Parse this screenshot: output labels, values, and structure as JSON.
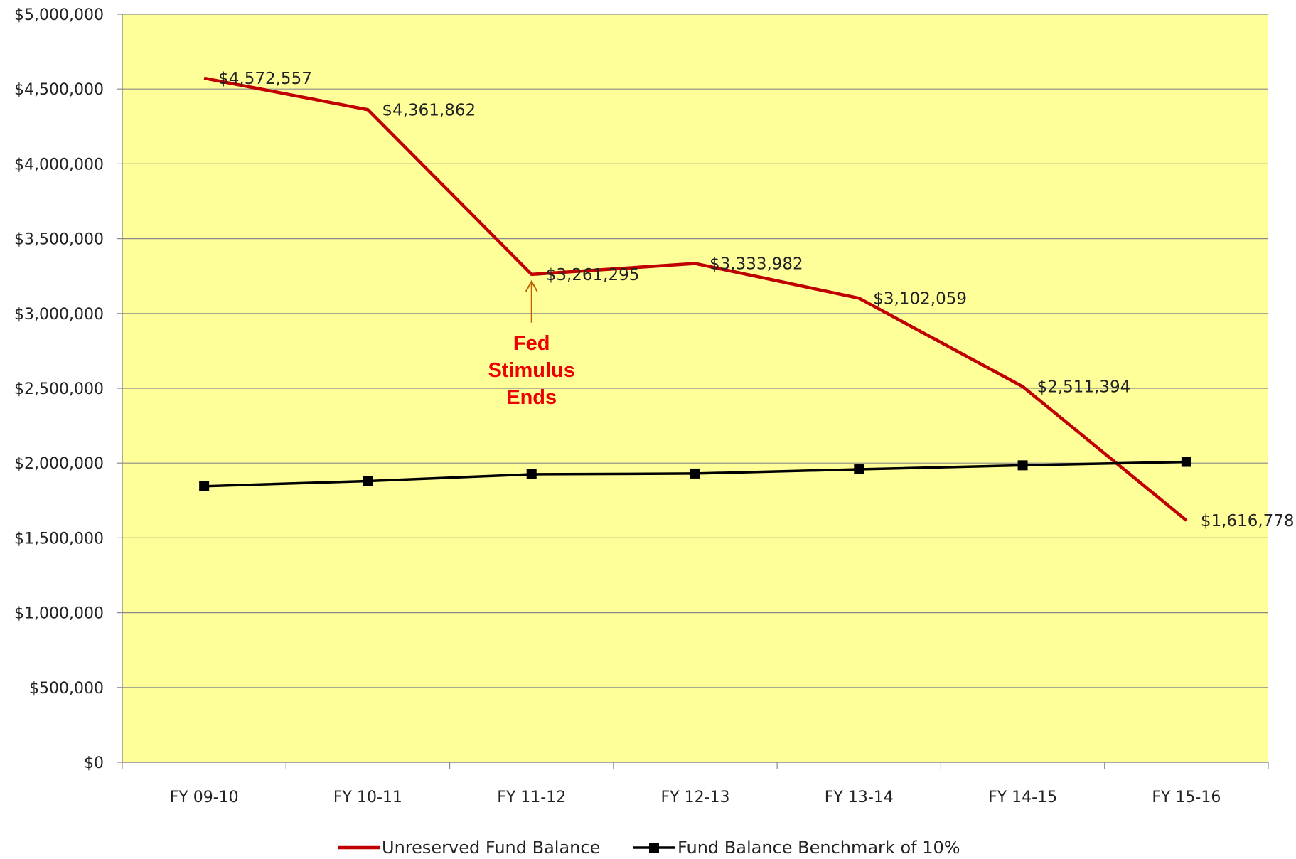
{
  "chart_data": {
    "type": "line",
    "categories": [
      "FY 09-10",
      "FY 10-11",
      "FY 11-12",
      "FY 12-13",
      "FY 13-14",
      "FY 14-15",
      "FY 15-16"
    ],
    "series": [
      {
        "name": "Unreserved Fund Balance",
        "values": [
          4572557,
          4361862,
          3261295,
          3333982,
          3102059,
          2511394,
          1616778
        ],
        "data_labels": [
          "$4,572,557",
          "$4,361,862",
          "$3,261,295",
          "$3,333,982",
          "$3,102,059",
          "$2,511,394",
          "$1,616,778"
        ],
        "color": "#c00000",
        "marker": "none"
      },
      {
        "name": "Fund Balance Benchmark of 10%",
        "values": [
          1845000,
          1880000,
          1925000,
          1930000,
          1958000,
          1985000,
          2008000
        ],
        "color": "#000000",
        "marker": "square"
      }
    ],
    "y_ticks": [
      "$0",
      "$500,000",
      "$1,000,000",
      "$1,500,000",
      "$2,000,000",
      "$2,500,000",
      "$3,000,000",
      "$3,500,000",
      "$4,000,000",
      "$4,500,000",
      "$5,000,000"
    ],
    "ylim": [
      0,
      5000000
    ],
    "grid": true,
    "legend_position": "bottom",
    "plot_background": "#ffff99",
    "annotation": {
      "lines": [
        "Fed",
        "Stimulus",
        "Ends"
      ],
      "color": "#ee0000",
      "arrow_color": "#c06000",
      "category_index": 2
    }
  }
}
